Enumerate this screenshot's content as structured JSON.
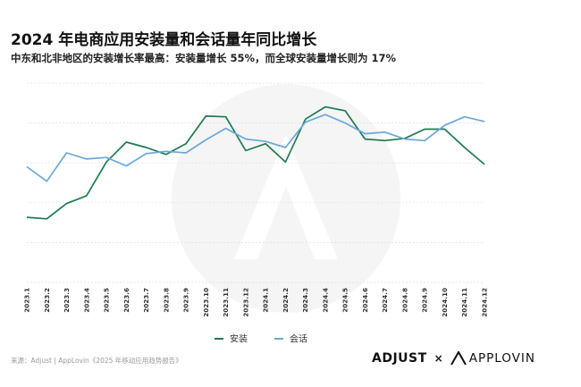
{
  "header": {
    "title": "2024 年电商应用安装量和会话量年同比增长",
    "subtitle": "中东和北非地区的安装增长率最高：安装量增长 55%，而全球安装量增长则为 17%"
  },
  "footer": {
    "source": "来源：Adjust | AppLovin《2025 年移动应用趋势报告》",
    "brand_adjust": "ADJUST",
    "separator": "×",
    "brand_applovin": "APPLOVIN"
  },
  "colors": {
    "installs": "#1e7b4f",
    "sessions": "#6aa8dc",
    "grid": "#dddddd",
    "watermark": "#f4f4f4"
  },
  "chart_data": {
    "type": "line",
    "categories": [
      "2023.1",
      "2023.2",
      "2023.3",
      "2023.4",
      "2023.5",
      "2023.6",
      "2023.7",
      "2023.8",
      "2023.9",
      "2023.10",
      "2023.11",
      "2023.12",
      "2024.1",
      "2024.2",
      "2024.3",
      "2024.4",
      "2024.5",
      "2024.6",
      "2024.7",
      "2024.8",
      "2024.9",
      "2024.10",
      "2024.11",
      "2024.12"
    ],
    "series": [
      {
        "name": "安装",
        "color": "#1e7b4f",
        "values": [
          0.15,
          0.13,
          0.33,
          0.43,
          0.87,
          1.13,
          1.06,
          0.97,
          1.11,
          1.47,
          1.46,
          1.02,
          1.11,
          0.87,
          1.43,
          1.59,
          1.54,
          1.17,
          1.15,
          1.18,
          1.3,
          1.3,
          1.06,
          0.84
        ]
      },
      {
        "name": "会话",
        "color": "#6aa8dc",
        "values": [
          0.81,
          0.62,
          0.99,
          0.91,
          0.93,
          0.82,
          0.98,
          1.01,
          0.99,
          1.16,
          1.31,
          1.17,
          1.14,
          1.06,
          1.39,
          1.49,
          1.38,
          1.24,
          1.26,
          1.17,
          1.15,
          1.35,
          1.46,
          1.4
        ]
      }
    ],
    "ylim": [
      -0.7,
      1.9
    ],
    "grid": true,
    "legend_position": "bottom-center",
    "xlabel": "",
    "ylabel": ""
  }
}
